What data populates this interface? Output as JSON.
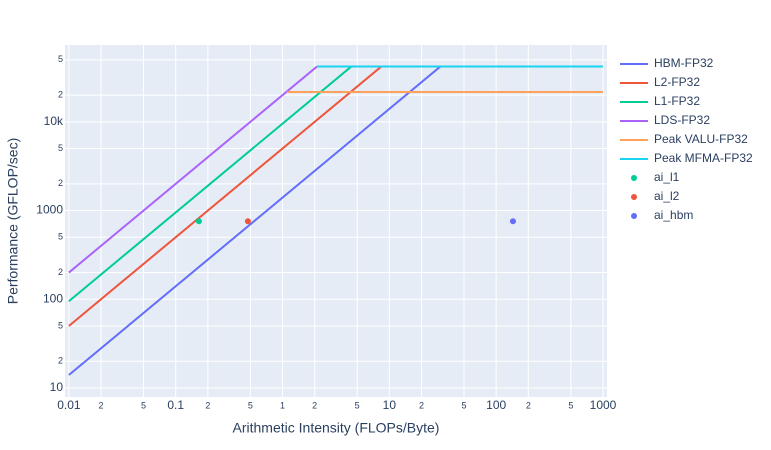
{
  "chart_data": {
    "type": "line",
    "xlabel": "Arithmetic Intensity (FLOPs/Byte)",
    "ylabel": "Performance (GFLOP/sec)",
    "log_x": true,
    "log_y": true,
    "grid": true,
    "legend": "right",
    "xlim": [
      0.0092,
      1090
    ],
    "ylim": [
      7.91,
      73500
    ],
    "xticks": [
      0.01,
      {
        "value": 0.02,
        "label": "2"
      },
      {
        "value": 0.05,
        "label": "5"
      },
      0.1,
      {
        "value": 0.2,
        "label": "2"
      },
      {
        "value": 0.5,
        "label": "5"
      },
      1,
      {
        "value": 2,
        "label": "2"
      },
      {
        "value": 5,
        "label": "5"
      },
      10,
      {
        "value": 20,
        "label": "2"
      },
      {
        "value": 50,
        "label": "5"
      },
      100,
      {
        "value": 200,
        "label": "2"
      },
      {
        "value": 500,
        "label": "5"
      },
      1000
    ],
    "yticks": [
      10,
      {
        "value": 20,
        "label": "2"
      },
      {
        "value": 50,
        "label": "5"
      },
      100,
      {
        "value": 200,
        "label": "2"
      },
      {
        "value": 500,
        "label": "5"
      },
      1000,
      {
        "value": 2000,
        "label": "2"
      },
      {
        "value": 5000,
        "label": "5"
      },
      {
        "value": 10000,
        "label": "10k"
      },
      {
        "value": 20000,
        "label": "2"
      },
      {
        "value": 50000,
        "label": "5"
      }
    ],
    "series": [
      {
        "name": "HBM-FP32",
        "color": "#636efa",
        "mode": "lines",
        "x": [
          0.01,
          30
        ],
        "values": [
          14,
          42000
        ]
      },
      {
        "name": "L2-FP32",
        "color": "#EF553B",
        "mode": "lines",
        "x": [
          0.01,
          8.4
        ],
        "values": [
          50,
          42000
        ]
      },
      {
        "name": "L1-FP32",
        "color": "#00cc96",
        "mode": "lines",
        "x": [
          0.01,
          4.4
        ],
        "values": [
          95,
          42000
        ]
      },
      {
        "name": "LDS-FP32",
        "color": "#ab63fa",
        "mode": "lines",
        "x": [
          0.01,
          2.1
        ],
        "values": [
          200,
          42000
        ]
      },
      {
        "name": "Peak VALU-FP32",
        "color": "#FFA15A",
        "mode": "lines",
        "x": [
          1.1,
          1000
        ],
        "values": [
          21700,
          21700
        ]
      },
      {
        "name": "Peak MFMA-FP32",
        "color": "#19d3f3",
        "mode": "lines",
        "x": [
          2.1,
          1000
        ],
        "values": [
          42000,
          42000
        ]
      },
      {
        "name": "ai_l1",
        "color": "#00cc96",
        "mode": "markers",
        "x": [
          0.165
        ],
        "values": [
          758
        ]
      },
      {
        "name": "ai_l2",
        "color": "#EF553B",
        "mode": "markers",
        "x": [
          0.474
        ],
        "values": [
          758
        ]
      },
      {
        "name": "ai_hbm",
        "color": "#636efa",
        "mode": "markers",
        "x": [
          143.6
        ],
        "values": [
          758
        ]
      }
    ]
  }
}
